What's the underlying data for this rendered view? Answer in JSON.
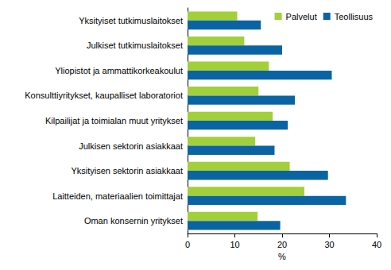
{
  "chart_data": {
    "type": "bar",
    "orientation": "horizontal",
    "categories": [
      "Yksityiset tutkimuslaitokset",
      "Julkiset tutkimuslaitokset",
      "Yliopistot ja ammattikorkeakoulut",
      "Konsulttiyritykset, kaupalliset laboratoriot",
      "Kilpailijat ja toimialan muut yritykset",
      "Julkisen sektorin asiakkaat",
      "Yksityisen sektorin asiakkaat",
      "Laitteiden, materiaalien toimittajat",
      "Oman konsernin yritykset"
    ],
    "series": [
      {
        "name": "Palvelut",
        "color": "#a3cf3a",
        "values": [
          10.5,
          12,
          17.2,
          15,
          18,
          14.3,
          21.6,
          24.7,
          14.8
        ]
      },
      {
        "name": "Teollisuus",
        "color": "#0a64a4",
        "values": [
          15.5,
          20,
          30.5,
          22.7,
          21.2,
          18.4,
          29.7,
          33.5,
          19.6
        ]
      }
    ],
    "xlabel": "%",
    "xlim": [
      0,
      40
    ],
    "xticks": [
      0,
      10,
      20,
      30,
      40
    ],
    "grid": false,
    "legend": "upper right"
  }
}
